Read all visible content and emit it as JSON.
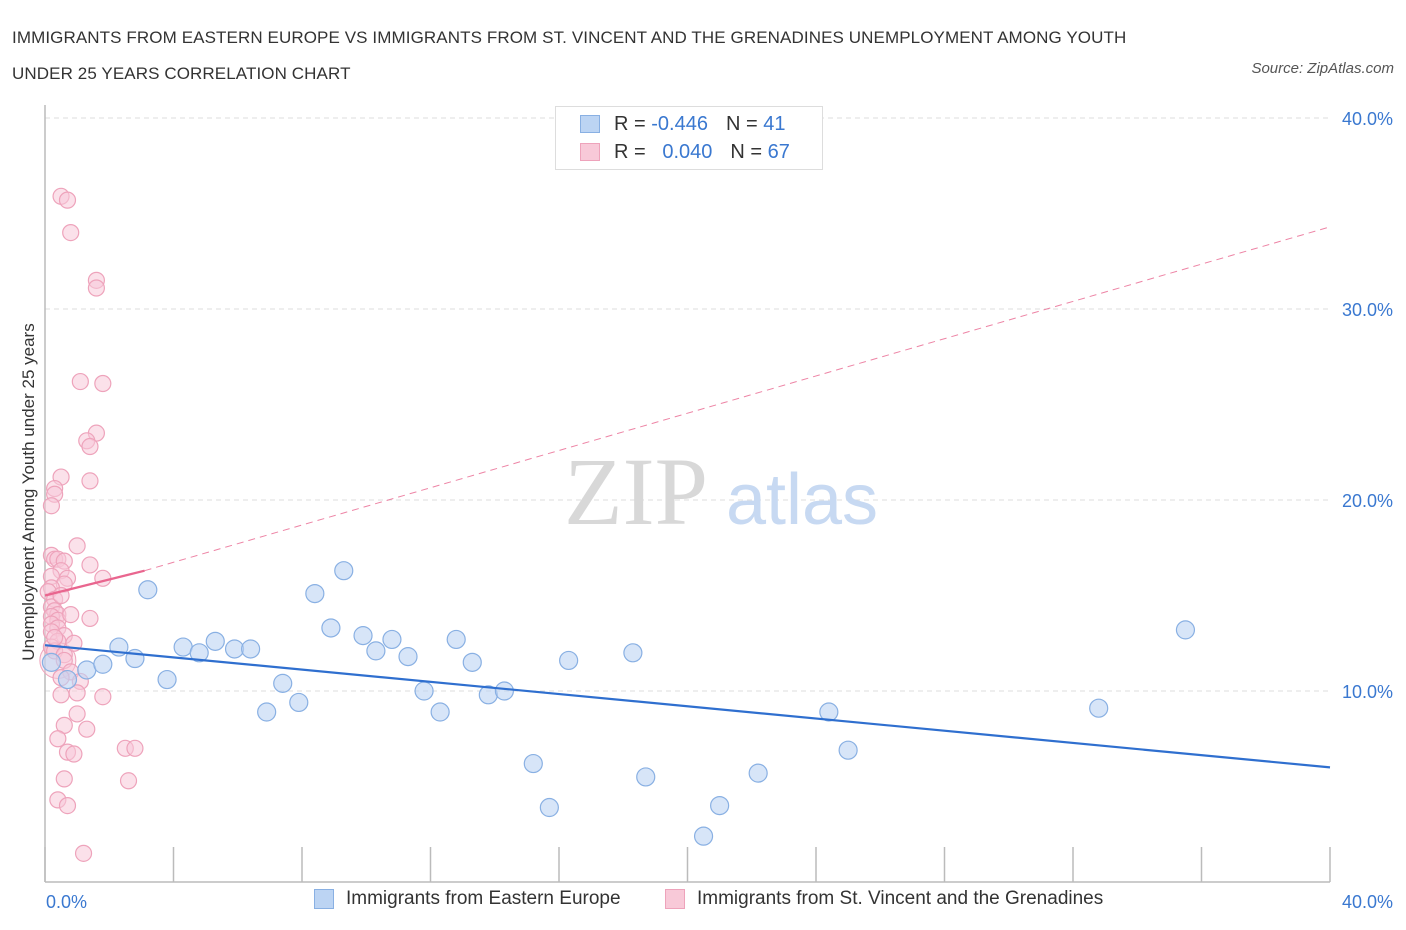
{
  "title": "IMMIGRANTS FROM EASTERN EUROPE VS IMMIGRANTS FROM ST. VINCENT AND THE GRENADINES UNEMPLOYMENT AMONG YOUTH UNDER 25 YEARS CORRELATION CHART",
  "source": "Source: ZipAtlas.com",
  "watermark": {
    "zip": "ZIP",
    "atlas": "atlas"
  },
  "legend": {
    "r_label": "R =",
    "n_label": "N =",
    "series1": {
      "r": "-0.446",
      "n": "41"
    },
    "series2": {
      "r": "0.040",
      "n": "67"
    }
  },
  "colors": {
    "blue_fill": "#bcd4f3",
    "blue_stroke": "#89b0e3",
    "blue_line": "#2f6fcf",
    "pink_fill": "#f8c9d8",
    "pink_stroke": "#eea3bb",
    "pink_line": "#e9668f",
    "axis_text": "#3a78d0",
    "grid": "#dddddd"
  },
  "chart_data": {
    "type": "scatter",
    "title": "IMMIGRANTS FROM EASTERN EUROPE VS IMMIGRANTS FROM ST. VINCENT AND THE GRENADINES UNEMPLOYMENT AMONG YOUTH UNDER 25 YEARS CORRELATION CHART",
    "ylabel": "Unemployment Among Youth under 25 years",
    "xlim": [
      0,
      40
    ],
    "ylim": [
      0,
      40
    ],
    "x_tick_labels": [
      "0.0%",
      "40.0%"
    ],
    "y_tick_labels": [
      "10.0%",
      "20.0%",
      "30.0%",
      "40.0%"
    ],
    "y_ticks": [
      10,
      20,
      30,
      40
    ],
    "series": [
      {
        "name": "Immigrants from Eastern Europe",
        "color": "#89b0e3",
        "R": -0.446,
        "N": 41,
        "trend": {
          "x0": 0,
          "y0": 12.4,
          "x1": 40,
          "y1": 6.0,
          "style": "solid"
        },
        "points": [
          [
            0.2,
            11.5
          ],
          [
            0.7,
            10.6
          ],
          [
            1.3,
            11.1
          ],
          [
            1.8,
            11.4
          ],
          [
            2.3,
            12.3
          ],
          [
            2.8,
            11.7
          ],
          [
            3.2,
            15.3
          ],
          [
            3.8,
            10.6
          ],
          [
            4.3,
            12.3
          ],
          [
            4.8,
            12.0
          ],
          [
            5.3,
            12.6
          ],
          [
            5.9,
            12.2
          ],
          [
            6.4,
            12.2
          ],
          [
            6.9,
            8.9
          ],
          [
            7.4,
            10.4
          ],
          [
            7.9,
            9.4
          ],
          [
            8.4,
            15.1
          ],
          [
            8.9,
            13.3
          ],
          [
            9.3,
            16.3
          ],
          [
            9.9,
            12.9
          ],
          [
            10.3,
            12.1
          ],
          [
            10.8,
            12.7
          ],
          [
            11.3,
            11.8
          ],
          [
            11.8,
            10.0
          ],
          [
            12.3,
            8.9
          ],
          [
            12.8,
            12.7
          ],
          [
            13.3,
            11.5
          ],
          [
            13.8,
            9.8
          ],
          [
            14.3,
            10.0
          ],
          [
            15.2,
            6.2
          ],
          [
            15.7,
            3.9
          ],
          [
            16.3,
            11.6
          ],
          [
            18.3,
            12.0
          ],
          [
            18.7,
            5.5
          ],
          [
            20.5,
            2.4
          ],
          [
            21.0,
            4.0
          ],
          [
            22.2,
            5.7
          ],
          [
            24.4,
            8.9
          ],
          [
            25.0,
            6.9
          ],
          [
            32.8,
            9.1
          ],
          [
            35.5,
            13.2
          ]
        ]
      },
      {
        "name": "Immigrants from St. Vincent and the Grenadines",
        "color": "#eea3bb",
        "R": 0.04,
        "N": 67,
        "trend": {
          "x0": 0,
          "y0": 15.0,
          "x1": 3.1,
          "y1": 16.3,
          "style": "solid"
        },
        "trend_extension": {
          "x0": 3.1,
          "y0": 16.3,
          "x1": 40,
          "y1": 34.3,
          "style": "dashed"
        },
        "points": [
          [
            0.5,
            35.9
          ],
          [
            0.7,
            35.7
          ],
          [
            0.8,
            34.0
          ],
          [
            1.6,
            31.5
          ],
          [
            1.6,
            31.1
          ],
          [
            1.1,
            26.2
          ],
          [
            1.8,
            26.1
          ],
          [
            1.6,
            23.5
          ],
          [
            1.3,
            23.1
          ],
          [
            1.4,
            22.8
          ],
          [
            1.4,
            21.0
          ],
          [
            0.5,
            21.2
          ],
          [
            0.3,
            20.6
          ],
          [
            0.3,
            20.3
          ],
          [
            0.2,
            19.7
          ],
          [
            0.2,
            17.1
          ],
          [
            0.3,
            16.9
          ],
          [
            0.4,
            16.9
          ],
          [
            0.6,
            16.8
          ],
          [
            1.0,
            17.6
          ],
          [
            1.4,
            16.6
          ],
          [
            0.5,
            16.3
          ],
          [
            0.2,
            16.0
          ],
          [
            0.7,
            15.9
          ],
          [
            1.8,
            15.9
          ],
          [
            0.6,
            15.6
          ],
          [
            0.2,
            15.4
          ],
          [
            0.1,
            15.2
          ],
          [
            0.3,
            14.8
          ],
          [
            0.2,
            14.4
          ],
          [
            0.3,
            14.2
          ],
          [
            0.4,
            14.0
          ],
          [
            0.2,
            13.9
          ],
          [
            0.4,
            13.7
          ],
          [
            0.2,
            13.5
          ],
          [
            0.4,
            13.3
          ],
          [
            1.4,
            13.8
          ],
          [
            0.2,
            13.1
          ],
          [
            0.6,
            12.9
          ],
          [
            0.4,
            12.6
          ],
          [
            0.9,
            12.5
          ],
          [
            0.2,
            12.3
          ],
          [
            0.3,
            12.1
          ],
          [
            0.6,
            11.9
          ],
          [
            0.6,
            11.6
          ],
          [
            0.8,
            11.0
          ],
          [
            0.5,
            10.7
          ],
          [
            1.1,
            10.5
          ],
          [
            1.0,
            9.9
          ],
          [
            0.5,
            9.8
          ],
          [
            1.8,
            9.7
          ],
          [
            1.0,
            8.8
          ],
          [
            0.6,
            8.2
          ],
          [
            1.3,
            8.0
          ],
          [
            0.4,
            7.5
          ],
          [
            0.7,
            6.8
          ],
          [
            0.9,
            6.7
          ],
          [
            2.5,
            7.0
          ],
          [
            2.8,
            7.0
          ],
          [
            0.6,
            5.4
          ],
          [
            2.6,
            5.3
          ],
          [
            0.4,
            4.3
          ],
          [
            0.7,
            4.0
          ],
          [
            1.2,
            1.5
          ],
          [
            0.3,
            12.8
          ],
          [
            0.5,
            15.0
          ],
          [
            0.8,
            14.0
          ]
        ]
      }
    ]
  },
  "bottom_legend": {
    "item1": "Immigrants from Eastern Europe",
    "item2": "Immigrants from St. Vincent and the Grenadines"
  }
}
